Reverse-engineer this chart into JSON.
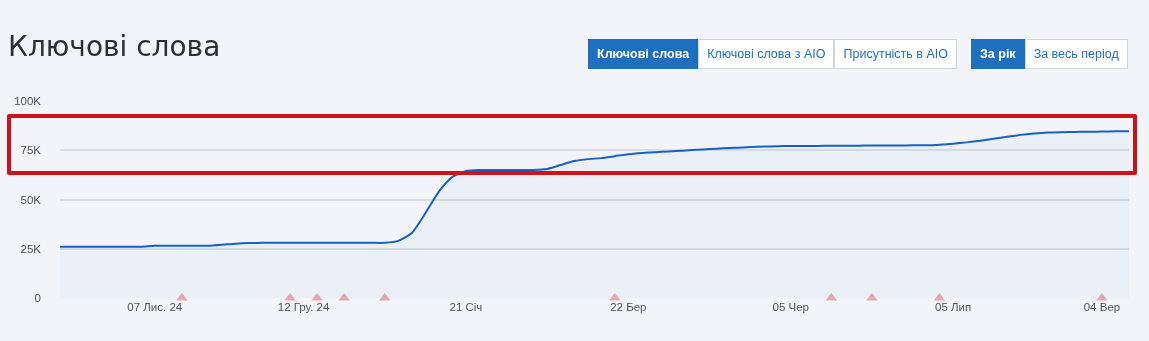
{
  "chart_data": {
    "type": "area",
    "title": "Ключові слова",
    "annotations": [
      "Ключові слова",
      "Ключові слова з AIO",
      "Присутність в AIO",
      "За рік",
      "За весь період"
    ],
    "categories": [
      null,
      null,
      null,
      null,
      null,
      null,
      null,
      "07 Лис. 24",
      null,
      null,
      null,
      null,
      null,
      null,
      null,
      null,
      null,
      null,
      "12 Гру. 24",
      null,
      null,
      null,
      null,
      null,
      null,
      null,
      null,
      null,
      null,
      null,
      "21 Січ",
      null,
      null,
      null,
      null,
      null,
      null,
      null,
      null,
      null,
      null,
      null,
      "22 Бер",
      null,
      null,
      null,
      null,
      null,
      null,
      null,
      null,
      null,
      null,
      null,
      "05 Чер",
      null,
      null,
      null,
      null,
      null,
      null,
      null,
      null,
      null,
      null,
      null,
      "05 Лип",
      null,
      null,
      null,
      null,
      null,
      null,
      null,
      null,
      null,
      null,
      "04 Вер",
      null,
      null
    ],
    "series": [
      {
        "color": "#1a5fc8",
        "values": [
          26000,
          26000,
          26000,
          26000,
          26000,
          26000,
          26000,
          26500,
          26500,
          26500,
          26500,
          26500,
          27000,
          27600,
          27900,
          28000,
          28000,
          28000,
          28000,
          28000,
          28000,
          28000,
          28000,
          28000,
          28000,
          29000,
          33000,
          43000,
          54000,
          61500,
          64500,
          65000,
          65000,
          65000,
          65000,
          65000,
          65500,
          67500,
          69500,
          70500,
          71000,
          72000,
          73000,
          73600,
          74000,
          74400,
          74800,
          75200,
          75600,
          76000,
          76300,
          76600,
          76900,
          77000,
          77200,
          77200,
          77200,
          77300,
          77300,
          77300,
          77400,
          77400,
          77400,
          77500,
          77500,
          77800,
          78300,
          79000,
          79800,
          80800,
          81800,
          82800,
          83500,
          84000,
          84200,
          84300,
          84400,
          84500,
          84600,
          84700
        ]
      },
      {
        "type": "scatter",
        "marker": "triangle",
        "color": "#e8a9ac",
        "values": [
          null,
          null,
          null,
          null,
          null,
          null,
          null,
          null,
          null,
          0,
          null,
          null,
          null,
          null,
          null,
          null,
          null,
          0,
          null,
          0,
          null,
          0,
          null,
          null,
          0,
          null,
          null,
          null,
          null,
          null,
          null,
          null,
          null,
          null,
          null,
          null,
          null,
          null,
          null,
          null,
          null,
          0,
          null,
          null,
          null,
          null,
          null,
          null,
          null,
          null,
          null,
          null,
          null,
          null,
          null,
          null,
          null,
          0,
          null,
          null,
          0,
          null,
          null,
          null,
          null,
          0,
          null,
          null,
          null,
          null,
          null,
          null,
          null,
          null,
          null,
          null,
          null,
          0,
          null,
          null
        ]
      }
    ],
    "ylim": [
      0,
      100000
    ],
    "yticks": [
      0,
      {
        "value": 25000,
        "label": "25K"
      },
      {
        "value": 50000,
        "label": "50K"
      },
      {
        "value": 75000,
        "label": "75K"
      },
      {
        "value": 100000,
        "label": "100K"
      }
    ],
    "grid": "y",
    "marker": "none",
    "line_style": "solid"
  }
}
